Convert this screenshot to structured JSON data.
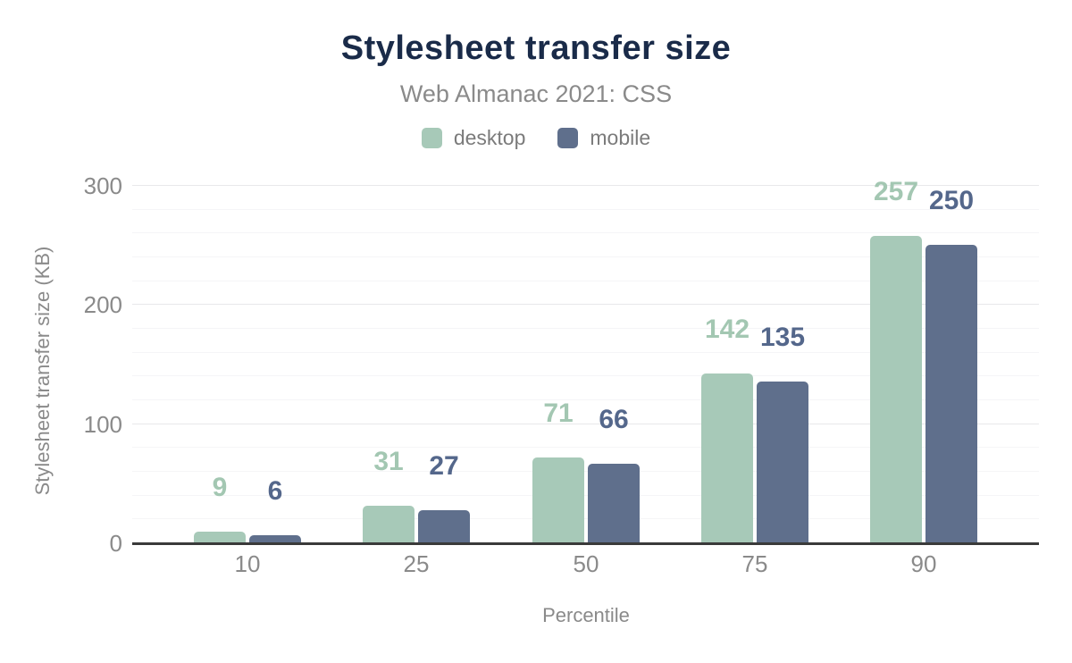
{
  "chart_data": {
    "type": "bar",
    "title": "Stylesheet transfer size",
    "subtitle": "Web Almanac 2021: CSS",
    "xlabel": "Percentile",
    "ylabel": "Stylesheet transfer size (KB)",
    "categories": [
      "10",
      "25",
      "50",
      "75",
      "90"
    ],
    "series": [
      {
        "name": "desktop",
        "color": "#a7c9b8",
        "label_color": "#a3c7b2",
        "values": [
          9,
          31,
          71,
          142,
          257
        ]
      },
      {
        "name": "mobile",
        "color": "#5f6f8c",
        "label_color": "#54678b",
        "values": [
          6,
          27,
          66,
          135,
          250
        ]
      }
    ],
    "ylim": [
      0,
      300
    ],
    "yticks": [
      0,
      100,
      200,
      300
    ],
    "minor_grid_step": 20,
    "grid": "on",
    "legend_position": "top",
    "data_labels": "shown"
  },
  "colors": {
    "title_text": "#1a2b49",
    "muted_text": "#8a8a8a",
    "legend_text": "#7b7b7b",
    "axis_line": "#3a3a3a",
    "grid_minor": "#f5f5f7",
    "grid_major": "#e8e8ea",
    "background": "#ffffff"
  }
}
